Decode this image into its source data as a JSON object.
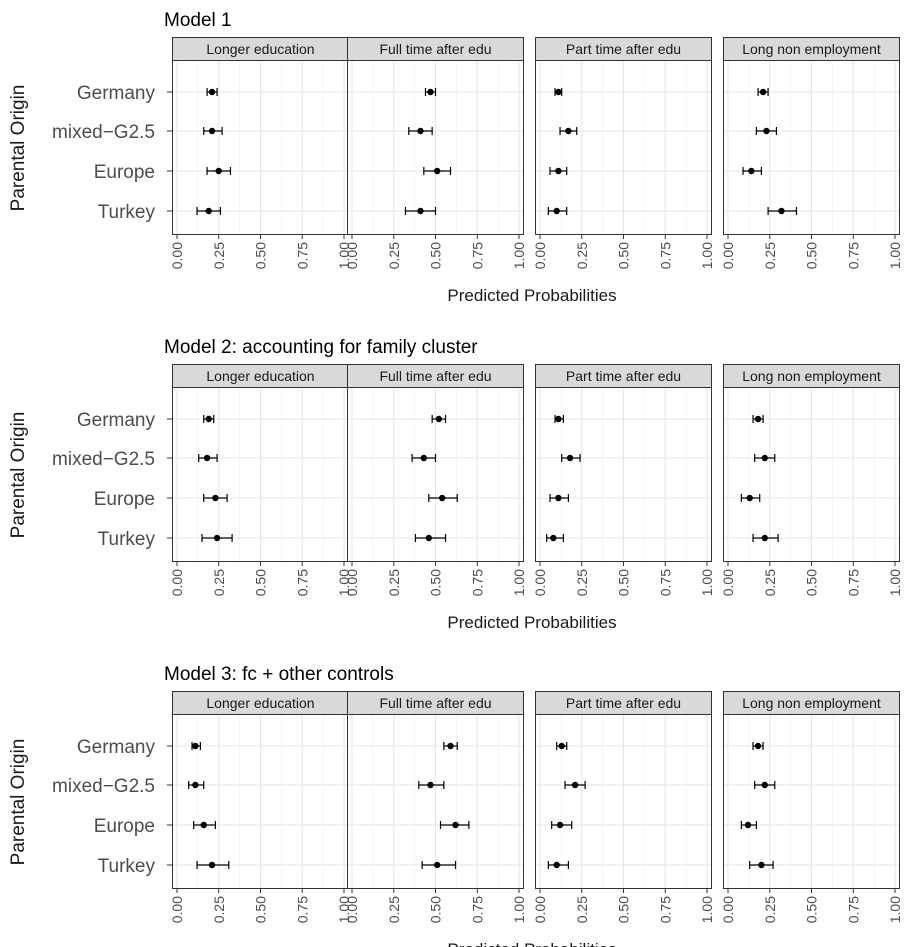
{
  "chart_data": [
    {
      "type": "scatter",
      "title": "Model 1",
      "ylabel": "Parental Origin",
      "xlabel": "Predicted Probabilities",
      "categories": [
        "Germany",
        "mixed−G2.5",
        "Europe",
        "Turkey"
      ],
      "xlim": [
        0,
        1
      ],
      "xticks": [
        "0.00",
        "0.25",
        "0.50",
        "0.75",
        "1.00"
      ],
      "grid": true,
      "panels": [
        {
          "label": "Longer education",
          "points": [
            {
              "est": 0.21,
              "lo": 0.18,
              "hi": 0.24
            },
            {
              "est": 0.21,
              "lo": 0.16,
              "hi": 0.27
            },
            {
              "est": 0.25,
              "lo": 0.18,
              "hi": 0.32
            },
            {
              "est": 0.19,
              "lo": 0.12,
              "hi": 0.26
            }
          ]
        },
        {
          "label": "Full time after edu",
          "points": [
            {
              "est": 0.47,
              "lo": 0.44,
              "hi": 0.5
            },
            {
              "est": 0.41,
              "lo": 0.34,
              "hi": 0.48
            },
            {
              "est": 0.51,
              "lo": 0.43,
              "hi": 0.59
            },
            {
              "est": 0.41,
              "lo": 0.32,
              "hi": 0.5
            }
          ]
        },
        {
          "label": "Part time after edu",
          "points": [
            {
              "est": 0.11,
              "lo": 0.09,
              "hi": 0.13
            },
            {
              "est": 0.17,
              "lo": 0.12,
              "hi": 0.22
            },
            {
              "est": 0.11,
              "lo": 0.06,
              "hi": 0.16
            },
            {
              "est": 0.1,
              "lo": 0.05,
              "hi": 0.16
            }
          ]
        },
        {
          "label": "Long non employment",
          "points": [
            {
              "est": 0.21,
              "lo": 0.18,
              "hi": 0.24
            },
            {
              "est": 0.23,
              "lo": 0.17,
              "hi": 0.29
            },
            {
              "est": 0.14,
              "lo": 0.09,
              "hi": 0.2
            },
            {
              "est": 0.32,
              "lo": 0.24,
              "hi": 0.41
            }
          ]
        }
      ]
    },
    {
      "type": "scatter",
      "title": "Model 2: accounting for family cluster",
      "ylabel": "Parental Origin",
      "xlabel": "Predicted Probabilities",
      "categories": [
        "Germany",
        "mixed−G2.5",
        "Europe",
        "Turkey"
      ],
      "xlim": [
        0,
        1
      ],
      "xticks": [
        "0.00",
        "0.25",
        "0.50",
        "0.75",
        "1.00"
      ],
      "grid": true,
      "panels": [
        {
          "label": "Longer education",
          "points": [
            {
              "est": 0.19,
              "lo": 0.16,
              "hi": 0.22
            },
            {
              "est": 0.18,
              "lo": 0.13,
              "hi": 0.24
            },
            {
              "est": 0.23,
              "lo": 0.16,
              "hi": 0.3
            },
            {
              "est": 0.24,
              "lo": 0.15,
              "hi": 0.33
            }
          ]
        },
        {
          "label": "Full time after edu",
          "points": [
            {
              "est": 0.52,
              "lo": 0.48,
              "hi": 0.56
            },
            {
              "est": 0.43,
              "lo": 0.36,
              "hi": 0.5
            },
            {
              "est": 0.54,
              "lo": 0.46,
              "hi": 0.63
            },
            {
              "est": 0.46,
              "lo": 0.38,
              "hi": 0.56
            }
          ]
        },
        {
          "label": "Part time after edu",
          "points": [
            {
              "est": 0.11,
              "lo": 0.09,
              "hi": 0.14
            },
            {
              "est": 0.18,
              "lo": 0.13,
              "hi": 0.24
            },
            {
              "est": 0.11,
              "lo": 0.06,
              "hi": 0.17
            },
            {
              "est": 0.08,
              "lo": 0.04,
              "hi": 0.14
            }
          ]
        },
        {
          "label": "Long non employment",
          "points": [
            {
              "est": 0.18,
              "lo": 0.15,
              "hi": 0.21
            },
            {
              "est": 0.22,
              "lo": 0.16,
              "hi": 0.28
            },
            {
              "est": 0.13,
              "lo": 0.08,
              "hi": 0.19
            },
            {
              "est": 0.22,
              "lo": 0.15,
              "hi": 0.3
            }
          ]
        }
      ]
    },
    {
      "type": "scatter",
      "title": "Model 3: fc + other controls",
      "ylabel": "Parental Origin",
      "xlabel": "Predicted Probabilities",
      "categories": [
        "Germany",
        "mixed−G2.5",
        "Europe",
        "Turkey"
      ],
      "xlim": [
        0,
        1
      ],
      "xticks": [
        "0.00",
        "0.25",
        "0.50",
        "0.75",
        "1.00"
      ],
      "grid": true,
      "panels": [
        {
          "label": "Longer education",
          "points": [
            {
              "est": 0.11,
              "lo": 0.09,
              "hi": 0.14
            },
            {
              "est": 0.11,
              "lo": 0.07,
              "hi": 0.16
            },
            {
              "est": 0.16,
              "lo": 0.1,
              "hi": 0.23
            },
            {
              "est": 0.21,
              "lo": 0.12,
              "hi": 0.31
            }
          ]
        },
        {
          "label": "Full time after edu",
          "points": [
            {
              "est": 0.59,
              "lo": 0.55,
              "hi": 0.63
            },
            {
              "est": 0.47,
              "lo": 0.4,
              "hi": 0.55
            },
            {
              "est": 0.62,
              "lo": 0.53,
              "hi": 0.7
            },
            {
              "est": 0.51,
              "lo": 0.42,
              "hi": 0.62
            }
          ]
        },
        {
          "label": "Part time after edu",
          "points": [
            {
              "est": 0.13,
              "lo": 0.1,
              "hi": 0.16
            },
            {
              "est": 0.21,
              "lo": 0.15,
              "hi": 0.27
            },
            {
              "est": 0.12,
              "lo": 0.07,
              "hi": 0.19
            },
            {
              "est": 0.1,
              "lo": 0.05,
              "hi": 0.17
            }
          ]
        },
        {
          "label": "Long non employment",
          "points": [
            {
              "est": 0.18,
              "lo": 0.15,
              "hi": 0.21
            },
            {
              "est": 0.22,
              "lo": 0.16,
              "hi": 0.28
            },
            {
              "est": 0.12,
              "lo": 0.08,
              "hi": 0.17
            },
            {
              "est": 0.2,
              "lo": 0.13,
              "hi": 0.27
            }
          ]
        }
      ]
    }
  ]
}
